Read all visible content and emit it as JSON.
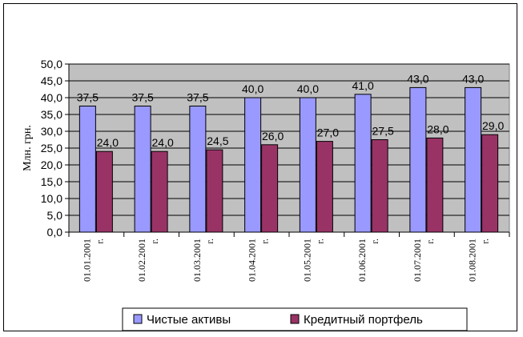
{
  "chart_data": {
    "type": "bar",
    "title": "",
    "ylabel": "Млн. грн.",
    "xlabel": "",
    "ylim": [
      0,
      50
    ],
    "ytick_step": 5,
    "ytick_labels": [
      "0,0",
      "5,0",
      "10,0",
      "15,0",
      "20,0",
      "25,0",
      "30,0",
      "35,0",
      "40,0",
      "45,0",
      "50,0"
    ],
    "grid": true,
    "plot_background": "#C0C0C0",
    "legend_position": "bottom",
    "categories": [
      [
        "01.01.2001",
        "г."
      ],
      [
        "01.02.2001",
        "г."
      ],
      [
        "01.03.2001",
        "г."
      ],
      [
        "01.04.2001",
        "г."
      ],
      [
        "01.05.2001",
        "г."
      ],
      [
        "01.06.2001",
        "г."
      ],
      [
        "01.07.2001",
        "г."
      ],
      [
        "01.08.2001",
        "г."
      ]
    ],
    "series": [
      {
        "name": "Чистые активы",
        "color": "#9999FF",
        "values": [
          37.5,
          37.5,
          37.5,
          40.0,
          40.0,
          41.0,
          43.0,
          43.0
        ],
        "labels": [
          "37,5",
          "37,5",
          "37,5",
          "40,0",
          "40,0",
          "41,0",
          "43,0",
          "43,0"
        ]
      },
      {
        "name": "Кредитный портфель",
        "color": "#993366",
        "values": [
          24.0,
          24.0,
          24.5,
          26.0,
          27.0,
          27.5,
          28.0,
          29.0
        ],
        "labels": [
          "24,0",
          "24,0",
          "24,5",
          "26,0",
          "27,0",
          "27,5",
          "28,0",
          "29,0"
        ]
      }
    ]
  }
}
